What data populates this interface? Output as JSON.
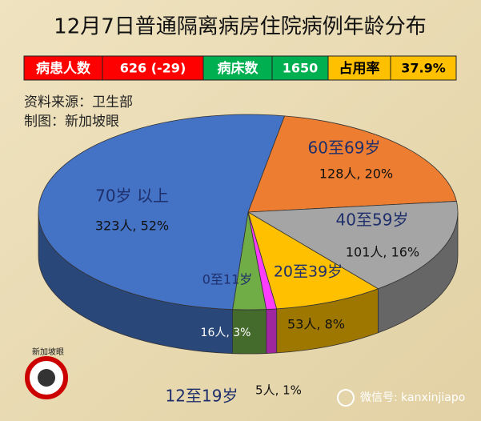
{
  "chart_data": {
    "type": "pie",
    "title": "12月7日普通隔离病房住院病例年龄分布",
    "categories": [
      "60至69岁",
      "40至59岁",
      "20至39岁",
      "12至19岁",
      "0至11岁",
      "70岁 以上"
    ],
    "values": [
      128,
      101,
      53,
      5,
      16,
      323
    ],
    "value_labels": [
      "128人, 20%",
      "101人, 16%",
      "53人, 8%",
      "5人, 1%",
      "16人, 3%",
      "323人, 52%"
    ],
    "colors": [
      "#ed7d31",
      "#a5a5a5",
      "#ffc000",
      "#ff3dff",
      "#70ad47",
      "#4472c4"
    ]
  },
  "stats": [
    {
      "label": "病患人数",
      "value": "626 (-29)",
      "color": "#ff0000",
      "text_color": "#ffffff"
    },
    {
      "label": "病床数",
      "value": "1650",
      "color": "#00b050",
      "text_color": "#ffffff"
    },
    {
      "label": "占用率",
      "value": "37.9%",
      "color": "#ffc000",
      "text_color": "#000000"
    }
  ],
  "source": "资料来源：卫生部",
  "author": "制图：新加坡眼",
  "logo": "新加坡眼",
  "watermark": "微信号: kanxinjiapo"
}
